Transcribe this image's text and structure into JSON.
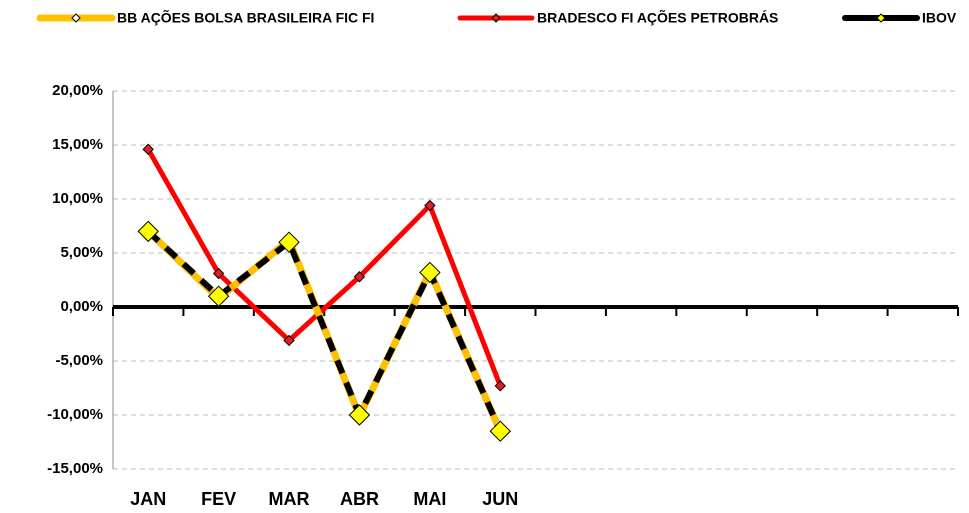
{
  "chart_data": {
    "type": "line",
    "categories": [
      "JAN",
      "FEV",
      "MAR",
      "ABR",
      "MAI",
      "JUN",
      null,
      null,
      null,
      null,
      null,
      null
    ],
    "series": [
      {
        "name": "BB AÇÕES BOLSA BRASILEIRA FIC FI",
        "color": "#ffc000",
        "marker_color": "#ffff00",
        "values": [
          7.0,
          0.8,
          6.2,
          -10.1,
          3.3,
          -11.5,
          null,
          null,
          null,
          null,
          null,
          null
        ]
      },
      {
        "name": "BRADESCO FI AÇÕES PETROBRÁS",
        "color": "#ff0000",
        "marker_color": "#e02020",
        "values": [
          14.6,
          3.1,
          -3.1,
          2.8,
          9.4,
          -7.3,
          null,
          null,
          null,
          null,
          null,
          null
        ]
      },
      {
        "name": "IBOV",
        "color": "#000000",
        "marker_color": "#ffff00",
        "values": [
          7.0,
          1.0,
          6.0,
          -10.0,
          3.2,
          -11.5,
          null,
          null,
          null,
          null,
          null,
          null
        ]
      }
    ],
    "ylim": [
      -15,
      20
    ],
    "yticks": [
      {
        "value": -15,
        "label": "-15,00%"
      },
      {
        "value": -10,
        "label": "-10,00%"
      },
      {
        "value": -5,
        "label": "-5,00%"
      },
      {
        "value": 0,
        "label": "0,00%"
      },
      {
        "value": 5,
        "label": "5,00%"
      },
      {
        "value": 10,
        "label": "10,00%"
      },
      {
        "value": 15,
        "label": "15,00%"
      },
      {
        "value": 20,
        "label": "20,00%"
      }
    ],
    "grid": true
  }
}
